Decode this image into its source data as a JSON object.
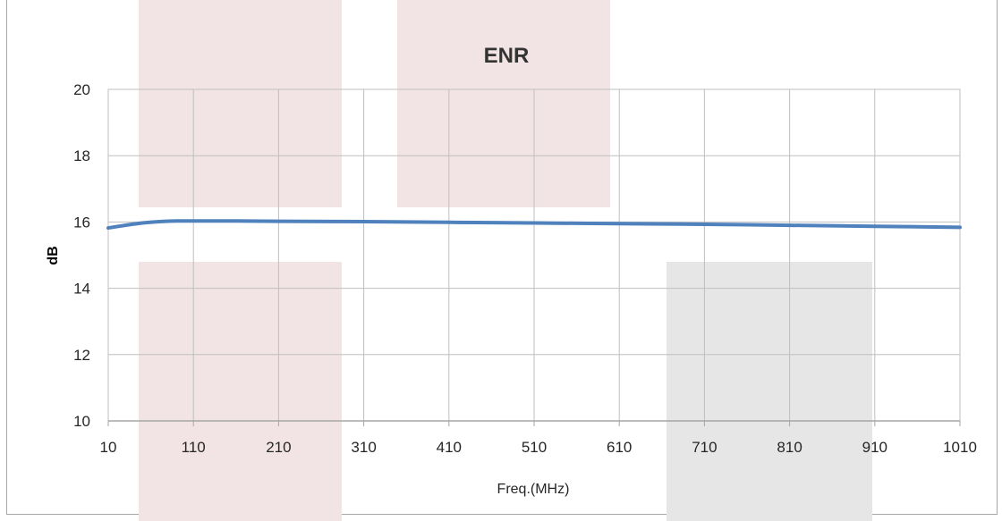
{
  "chart_data": {
    "type": "line",
    "title": "ENR",
    "xlabel": "Freq.(MHz)",
    "ylabel": "dB",
    "xlim": [
      10,
      1010
    ],
    "ylim": [
      10,
      20
    ],
    "x_ticks": [
      10,
      110,
      210,
      310,
      410,
      510,
      610,
      710,
      810,
      910,
      1010
    ],
    "y_ticks": [
      10,
      12,
      14,
      16,
      18,
      20
    ],
    "grid": true,
    "legend": "none",
    "series": [
      {
        "color": "#4f81bd",
        "x": [
          10,
          30,
          50,
          70,
          90,
          110,
          160,
          210,
          310,
          410,
          510,
          610,
          710,
          810,
          910,
          1010
        ],
        "y": [
          15.82,
          15.9,
          15.97,
          16.01,
          16.03,
          16.03,
          16.03,
          16.02,
          16.01,
          15.99,
          15.97,
          15.95,
          15.93,
          15.9,
          15.87,
          15.84
        ]
      }
    ]
  },
  "colors": {
    "grid": "#bfbfbf",
    "frame": "#a6a6a6",
    "text": "#262626"
  }
}
